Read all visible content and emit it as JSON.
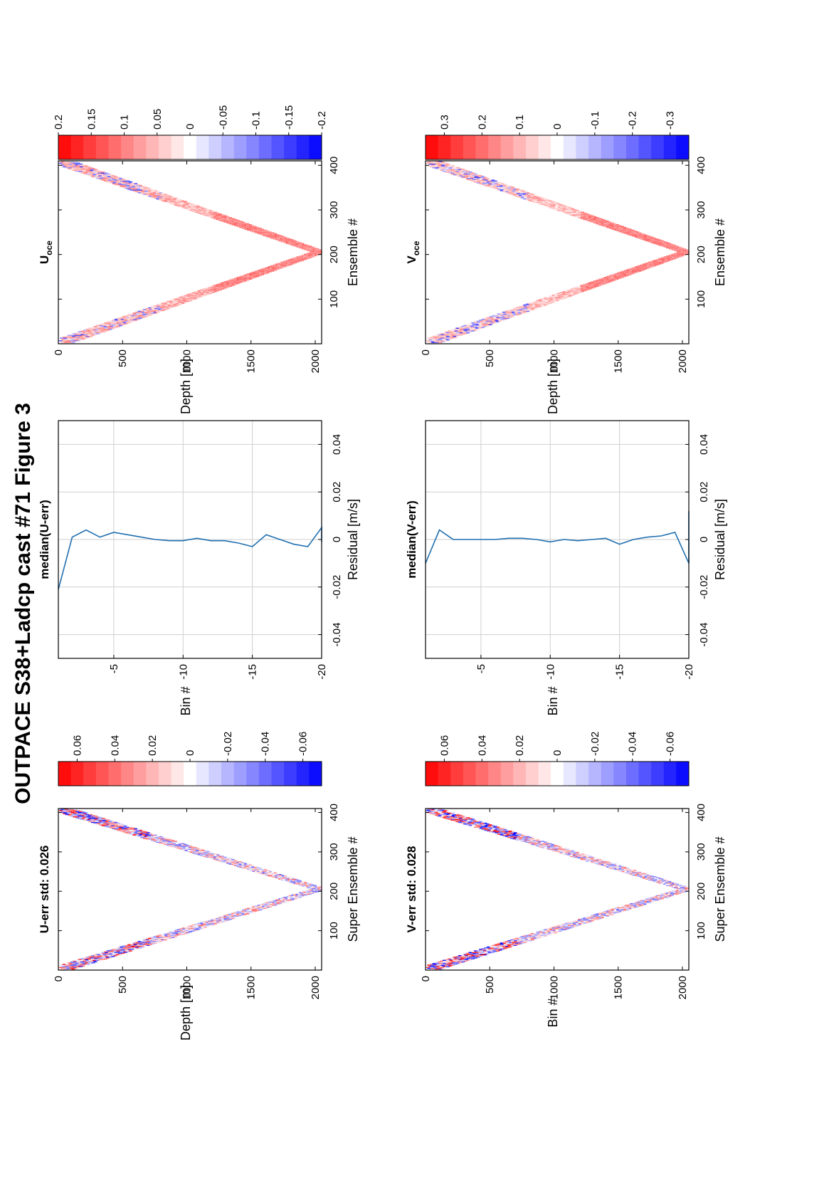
{
  "figure_title": "OUTPACE S38+Ladcp cast #71  Figure 3",
  "colors": {
    "positive": "#ff0000",
    "negative": "#0000ff",
    "line": "#1f6fb0",
    "grid": "#cfcfcf"
  },
  "chart_data": [
    {
      "type": "heatmap",
      "panel": "u-err",
      "title": "U-err std: 0.026",
      "xlabel": "Super Ensemble #",
      "ylabel": "Depth [m]",
      "xlim": [
        0,
        410
      ],
      "ylim": [
        0,
        2050
      ],
      "xticks": [
        "100",
        "200",
        "300",
        "400"
      ],
      "yticks": [
        "0",
        "500",
        "1000",
        "1500",
        "2000"
      ],
      "colorbar": {
        "range": [
          -0.07,
          0.07
        ],
        "ticks": [
          "0.06",
          "0.04",
          "0.02",
          "0",
          "-0.02",
          "-0.04",
          "-0.06"
        ]
      },
      "pattern": {
        "shape": "V",
        "surface_start": 0,
        "bottom_ensemble": 205,
        "max_depth": 2030,
        "surface_end": 410
      }
    },
    {
      "type": "line",
      "panel": "median-u-err",
      "title": "median(U-err)",
      "xlabel": "Residual [m/s]",
      "ylabel": "Bin #",
      "xlim": [
        -0.05,
        0.05
      ],
      "ylim": [
        -20,
        -1
      ],
      "xticks": [
        "-0.04",
        "-0.02",
        "0",
        "0.02",
        "0.04"
      ],
      "yticks": [
        "-5",
        "-10",
        "-15",
        "-20"
      ],
      "grid": true,
      "series": [
        {
          "x": [
            -0.021,
            0.001,
            0.004,
            0.001,
            0.003,
            0.002,
            0.001,
            0.0,
            -0.0005,
            -0.0005,
            0.0005,
            -0.0005,
            -0.0005,
            -0.0015,
            -0.003,
            0.002,
            0.0,
            -0.002,
            -0.003,
            0.005,
            -0.001
          ],
          "y": [
            -1,
            -2,
            -3,
            -4,
            -5,
            -6,
            -7,
            -8,
            -9,
            -10,
            -11,
            -12,
            -13,
            -14,
            -15,
            -16,
            -17,
            -18,
            -19,
            -20,
            -21
          ]
        }
      ]
    },
    {
      "type": "heatmap",
      "panel": "u-oce",
      "title": "U",
      "title_sub": "oce",
      "xlabel": "Ensemble #",
      "ylabel": "Depth [m]",
      "xlim": [
        0,
        410
      ],
      "ylim": [
        0,
        2050
      ],
      "xticks": [
        "100",
        "200",
        "300",
        "400"
      ],
      "yticks": [
        "0",
        "500",
        "1000",
        "1500",
        "2000"
      ],
      "colorbar": {
        "range": [
          -0.2,
          0.2
        ],
        "ticks": [
          "0.2",
          "0.15",
          "0.1",
          "0.05",
          "0",
          "-0.05",
          "-0.1",
          "-0.15",
          "-0.2"
        ]
      },
      "pattern": {
        "shape": "V",
        "surface_start": 0,
        "bottom_ensemble": 205,
        "max_depth": 2030,
        "surface_end": 410
      }
    },
    {
      "type": "heatmap",
      "panel": "v-err",
      "title": "V-err std: 0.028",
      "xlabel": "Super Ensemble #",
      "ylabel": "Bin #",
      "xlim": [
        0,
        410
      ],
      "ylim": [
        0,
        2050
      ],
      "xticks": [
        "100",
        "200",
        "300",
        "400"
      ],
      "yticks": [
        "0",
        "500",
        "1000",
        "1500",
        "2000"
      ],
      "colorbar": {
        "range": [
          -0.07,
          0.07
        ],
        "ticks": [
          "0.06",
          "0.04",
          "0.02",
          "0",
          "-0.02",
          "-0.04",
          "-0.06"
        ]
      },
      "pattern": {
        "shape": "V",
        "surface_start": 0,
        "bottom_ensemble": 205,
        "max_depth": 2030,
        "surface_end": 410
      }
    },
    {
      "type": "line",
      "panel": "median-v-err",
      "title": "median(V-err)",
      "xlabel": "Residual [m/s]",
      "ylabel": "Bin #",
      "xlim": [
        -0.05,
        0.05
      ],
      "ylim": [
        -20,
        -1
      ],
      "xticks": [
        "-0.04",
        "-0.02",
        "0",
        "0.02",
        "0.04"
      ],
      "yticks": [
        "-5",
        "-10",
        "-15",
        "-20"
      ],
      "grid": true,
      "series": [
        {
          "x": [
            -0.01,
            0.004,
            0.0,
            0.0,
            0.0,
            0.0,
            0.0005,
            0.0005,
            0.0,
            -0.001,
            0.0,
            -0.0005,
            0.0,
            0.0005,
            -0.002,
            0.0,
            0.001,
            0.0015,
            0.003,
            -0.01,
            -0.007,
            0.012
          ],
          "y": [
            -1,
            -2,
            -3,
            -4,
            -5,
            -6,
            -7,
            -8,
            -9,
            -10,
            -11,
            -12,
            -13,
            -14,
            -15,
            -16,
            -17,
            -18,
            -19,
            -20,
            -21,
            -22
          ]
        }
      ]
    },
    {
      "type": "heatmap",
      "panel": "v-oce",
      "title": "V",
      "title_sub": "oce",
      "xlabel": "Ensemble #",
      "ylabel": "Depth [m]",
      "xlim": [
        0,
        410
      ],
      "ylim": [
        0,
        2050
      ],
      "xticks": [
        "100",
        "200",
        "300",
        "400"
      ],
      "yticks": [
        "0",
        "500",
        "1000",
        "1500",
        "2000"
      ],
      "colorbar": {
        "range": [
          -0.35,
          0.35
        ],
        "ticks": [
          "0.3",
          "0.2",
          "0.1",
          "0",
          "-0.1",
          "-0.2",
          "-0.3"
        ]
      },
      "pattern": {
        "shape": "V",
        "surface_start": 0,
        "bottom_ensemble": 205,
        "max_depth": 2030,
        "surface_end": 410
      }
    }
  ]
}
